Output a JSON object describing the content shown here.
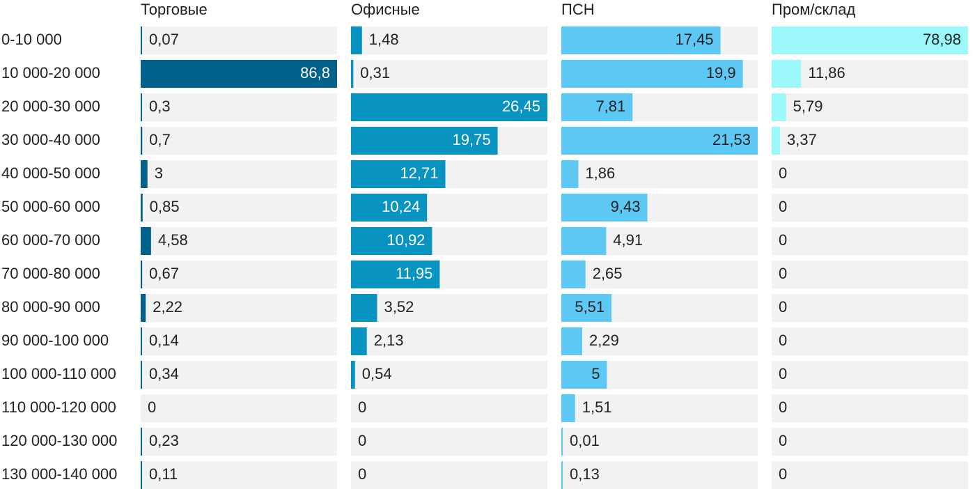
{
  "chart_data": {
    "type": "bar",
    "categories": [
      "0-10 000",
      "10 000-20 000",
      "20 000-30 000",
      "30 000-40 000",
      "40 000-50 000",
      "50 000-60 000",
      "60 000-70 000",
      "70 000-80 000",
      "80 000-90 000",
      "90 000-100 000",
      "100 000-110 000",
      "110 000-120 000",
      "120 000-130 000",
      "130 000-140 000"
    ],
    "series": [
      {
        "name": "Торговые",
        "color": "#00618a",
        "xlim": [
          0,
          86.8
        ],
        "values": [
          0.07,
          86.8,
          0.3,
          0.7,
          3,
          0.85,
          4.58,
          0.67,
          2.22,
          0.14,
          0.34,
          0,
          0.23,
          0.11
        ],
        "value_labels": [
          "0,07",
          "86,8",
          "0,3",
          "0,7",
          "3",
          "0,85",
          "4,58",
          "0,67",
          "2,22",
          "0,14",
          "0,34",
          "0",
          "0,23",
          "0,11"
        ]
      },
      {
        "name": "Офисные",
        "color": "#0893c0",
        "xlim": [
          0,
          26.45
        ],
        "values": [
          1.48,
          0.31,
          26.45,
          19.75,
          12.71,
          10.24,
          10.92,
          11.95,
          3.52,
          2.13,
          0.54,
          0,
          0,
          0
        ],
        "value_labels": [
          "1,48",
          "0,31",
          "26,45",
          "19,75",
          "12,71",
          "10,24",
          "10,92",
          "11,95",
          "3,52",
          "2,13",
          "0,54",
          "0",
          "0",
          "0"
        ]
      },
      {
        "name": "ПСН",
        "color": "#5ec8f5",
        "xlim": [
          0,
          21.53
        ],
        "values": [
          17.45,
          19.9,
          7.81,
          21.53,
          1.86,
          9.43,
          4.91,
          2.65,
          5.51,
          2.29,
          5,
          1.51,
          0.01,
          0.13
        ],
        "value_labels": [
          "17,45",
          "19,9",
          "7,81",
          "21,53",
          "1,86",
          "9,43",
          "4,91",
          "2,65",
          "5,51",
          "2,29",
          "5",
          "1,51",
          "0,01",
          "0,13"
        ]
      },
      {
        "name": "Пром/склад",
        "color": "#9cf7fb",
        "xlim": [
          0,
          78.98
        ],
        "values": [
          78.98,
          11.86,
          5.79,
          3.37,
          0,
          0,
          0,
          0,
          0,
          0,
          0,
          0,
          0,
          0
        ],
        "value_labels": [
          "78,98",
          "11,86",
          "5,79",
          "3,37",
          "0",
          "0",
          "0",
          "0",
          "0",
          "0",
          "0",
          "0",
          "0",
          "0"
        ]
      }
    ]
  }
}
